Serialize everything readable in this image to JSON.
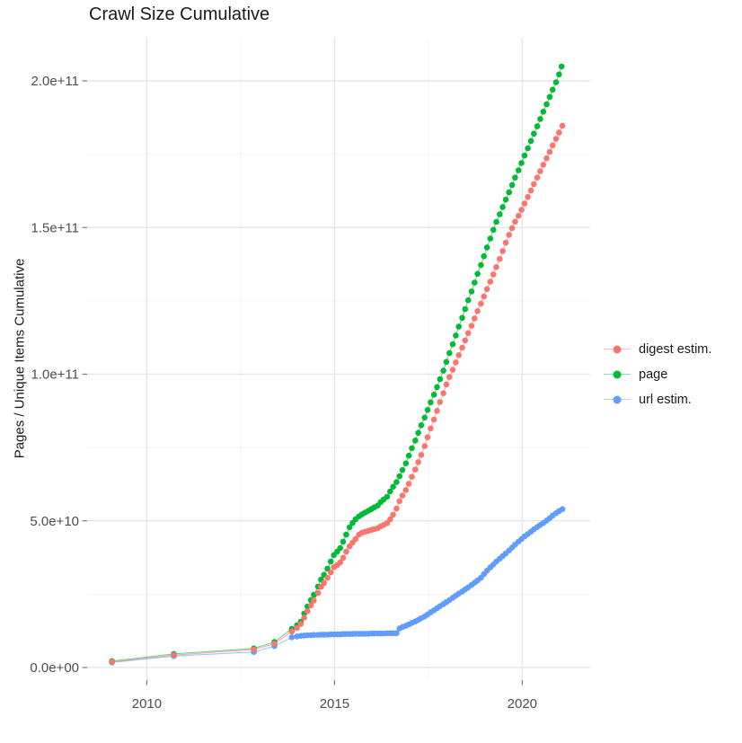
{
  "title": "Crawl Size Cumulative",
  "y_axis_title": "Pages / Unique Items Cumulative",
  "colors": {
    "digest": "#F8766D",
    "page": "#00BA38",
    "url": "#619CFF",
    "grid_major": "#e6e6e6",
    "grid_minor": "#f2f2f2",
    "tick_mark": "#7a7a7a",
    "axis_text": "#4d4d4d",
    "title_text": "#1a1a1a"
  },
  "legend": [
    {
      "id": "digest",
      "label": "digest estim."
    },
    {
      "id": "page",
      "label": "page"
    },
    {
      "id": "url",
      "label": "url estim."
    }
  ],
  "chart_data": {
    "type": "scatter",
    "title": "Crawl Size Cumulative",
    "xlabel": "",
    "ylabel": "Pages / Unique Items Cumulative",
    "grid": true,
    "legend_position": "right",
    "value_unit": "pages, values in billions (1e9)",
    "x_axis": {
      "range": [
        2008.41,
        2021.81
      ],
      "major_ticks": [
        2010,
        2015,
        2020
      ],
      "tick_labels": [
        "2010",
        "2015",
        "2020"
      ],
      "minor_ticks": [
        2012.5,
        2017.5
      ]
    },
    "y_axis": {
      "range_e9": [
        -4.3,
        214.7
      ],
      "major_ticks_e9": [
        0,
        50,
        100,
        150,
        200
      ],
      "tick_labels": [
        "0.0e+00",
        "5.0e+10",
        "1.0e+11",
        "1.5e+11",
        "2.0e+11"
      ],
      "minor_ticks_e9": [
        25,
        75,
        125,
        175
      ]
    },
    "series": [
      {
        "name": "url estim.",
        "color_id": "url",
        "points": [
          [
            2009.07,
            1.7
          ],
          [
            2010.72,
            3.9
          ],
          [
            2012.85,
            5.3
          ],
          [
            2013.4,
            7.3
          ],
          [
            2013.86,
            10.3
          ],
          [
            2014.0,
            10.6
          ],
          [
            2014.1,
            10.8
          ],
          [
            2014.19,
            10.9
          ],
          [
            2014.28,
            11.0
          ],
          [
            2014.37,
            11.0
          ],
          [
            2014.45,
            11.1
          ],
          [
            2014.56,
            11.1
          ],
          [
            2014.64,
            11.2
          ],
          [
            2014.72,
            11.2
          ],
          [
            2014.81,
            11.2
          ],
          [
            2014.9,
            11.3
          ],
          [
            2014.98,
            11.3
          ],
          [
            2015.07,
            11.3
          ],
          [
            2015.15,
            11.3
          ],
          [
            2015.23,
            11.4
          ],
          [
            2015.31,
            11.4
          ],
          [
            2015.4,
            11.4
          ],
          [
            2015.48,
            11.4
          ],
          [
            2015.56,
            11.5
          ],
          [
            2015.65,
            11.5
          ],
          [
            2015.73,
            11.5
          ],
          [
            2015.81,
            11.5
          ],
          [
            2015.9,
            11.5
          ],
          [
            2015.98,
            11.6
          ],
          [
            2016.06,
            11.6
          ],
          [
            2016.15,
            11.6
          ],
          [
            2016.23,
            11.6
          ],
          [
            2016.31,
            11.6
          ],
          [
            2016.4,
            11.7
          ],
          [
            2016.48,
            11.7
          ],
          [
            2016.56,
            11.7
          ],
          [
            2016.65,
            11.7
          ],
          [
            2016.73,
            13.3
          ],
          [
            2016.81,
            13.8
          ],
          [
            2016.9,
            14.2
          ],
          [
            2016.98,
            14.7
          ],
          [
            2017.06,
            15.2
          ],
          [
            2017.15,
            15.7
          ],
          [
            2017.23,
            16.2
          ],
          [
            2017.31,
            16.8
          ],
          [
            2017.4,
            17.4
          ],
          [
            2017.48,
            18.1
          ],
          [
            2017.56,
            18.8
          ],
          [
            2017.65,
            19.5
          ],
          [
            2017.73,
            20.2
          ],
          [
            2017.81,
            20.9
          ],
          [
            2017.9,
            21.6
          ],
          [
            2017.98,
            22.3
          ],
          [
            2018.06,
            23.0
          ],
          [
            2018.15,
            23.8
          ],
          [
            2018.23,
            24.5
          ],
          [
            2018.31,
            25.2
          ],
          [
            2018.4,
            25.9
          ],
          [
            2018.48,
            26.6
          ],
          [
            2018.56,
            27.3
          ],
          [
            2018.65,
            28.1
          ],
          [
            2018.73,
            28.9
          ],
          [
            2018.81,
            29.7
          ],
          [
            2018.9,
            30.6
          ],
          [
            2018.98,
            31.8
          ],
          [
            2019.06,
            33.0
          ],
          [
            2019.15,
            34.1
          ],
          [
            2019.23,
            35.1
          ],
          [
            2019.31,
            36.1
          ],
          [
            2019.4,
            37.1
          ],
          [
            2019.48,
            38.0
          ],
          [
            2019.56,
            38.9
          ],
          [
            2019.65,
            39.9
          ],
          [
            2019.73,
            40.9
          ],
          [
            2019.81,
            41.9
          ],
          [
            2019.9,
            42.9
          ],
          [
            2019.98,
            43.8
          ],
          [
            2020.06,
            44.7
          ],
          [
            2020.15,
            45.5
          ],
          [
            2020.23,
            46.3
          ],
          [
            2020.31,
            47.1
          ],
          [
            2020.4,
            47.9
          ],
          [
            2020.48,
            48.6
          ],
          [
            2020.56,
            49.3
          ],
          [
            2020.65,
            50.1
          ],
          [
            2020.73,
            50.9
          ],
          [
            2020.81,
            51.8
          ],
          [
            2020.9,
            52.6
          ],
          [
            2020.98,
            53.3
          ],
          [
            2021.07,
            54.0
          ]
        ]
      },
      {
        "name": "page",
        "color_id": "page",
        "points": [
          [
            2009.07,
            2.2
          ],
          [
            2010.72,
            4.6
          ],
          [
            2012.85,
            6.5
          ],
          [
            2013.4,
            8.7
          ],
          [
            2013.86,
            13.2
          ],
          [
            2014.0,
            14.4
          ],
          [
            2014.1,
            15.6
          ],
          [
            2014.19,
            18.4
          ],
          [
            2014.28,
            20.8
          ],
          [
            2014.37,
            23.0
          ],
          [
            2014.45,
            24.8
          ],
          [
            2014.56,
            27.6
          ],
          [
            2014.64,
            30.0
          ],
          [
            2014.72,
            31.6
          ],
          [
            2014.81,
            33.7
          ],
          [
            2014.9,
            36.1
          ],
          [
            2014.98,
            38.3
          ],
          [
            2015.07,
            39.5
          ],
          [
            2015.15,
            40.7
          ],
          [
            2015.23,
            42.9
          ],
          [
            2015.31,
            45.3
          ],
          [
            2015.4,
            47.8
          ],
          [
            2015.48,
            49.3
          ],
          [
            2015.56,
            50.5
          ],
          [
            2015.65,
            51.5
          ],
          [
            2015.73,
            52.2
          ],
          [
            2015.81,
            52.8
          ],
          [
            2015.9,
            53.4
          ],
          [
            2015.98,
            54.0
          ],
          [
            2016.06,
            54.6
          ],
          [
            2016.15,
            55.2
          ],
          [
            2016.23,
            56.4
          ],
          [
            2016.31,
            57.3
          ],
          [
            2016.4,
            58.2
          ],
          [
            2016.48,
            60.0
          ],
          [
            2016.56,
            61.6
          ],
          [
            2016.65,
            63.2
          ],
          [
            2016.73,
            65.2
          ],
          [
            2016.81,
            67.3
          ],
          [
            2016.9,
            69.6
          ],
          [
            2016.98,
            72.2
          ],
          [
            2017.06,
            74.8
          ],
          [
            2017.15,
            77.4
          ],
          [
            2017.23,
            80.0
          ],
          [
            2017.31,
            82.6
          ],
          [
            2017.4,
            85.2
          ],
          [
            2017.48,
            87.8
          ],
          [
            2017.56,
            90.4
          ],
          [
            2017.65,
            93.0
          ],
          [
            2017.73,
            95.6
          ],
          [
            2017.81,
            98.3
          ],
          [
            2017.9,
            101.2
          ],
          [
            2017.98,
            104.2
          ],
          [
            2018.06,
            107.2
          ],
          [
            2018.15,
            110.2
          ],
          [
            2018.23,
            113.2
          ],
          [
            2018.31,
            116.2
          ],
          [
            2018.4,
            119.2
          ],
          [
            2018.48,
            122.2
          ],
          [
            2018.56,
            125.2
          ],
          [
            2018.65,
            128.2
          ],
          [
            2018.73,
            131.2
          ],
          [
            2018.81,
            134.2
          ],
          [
            2018.9,
            137.2
          ],
          [
            2018.98,
            140.2
          ],
          [
            2019.06,
            143.2
          ],
          [
            2019.15,
            146.2
          ],
          [
            2019.23,
            149.2
          ],
          [
            2019.31,
            151.9
          ],
          [
            2019.4,
            154.5
          ],
          [
            2019.48,
            157.0
          ],
          [
            2019.56,
            159.5
          ],
          [
            2019.65,
            162.0
          ],
          [
            2019.73,
            164.5
          ],
          [
            2019.81,
            167.0
          ],
          [
            2019.9,
            169.5
          ],
          [
            2019.98,
            172.0
          ],
          [
            2020.06,
            174.5
          ],
          [
            2020.15,
            177.0
          ],
          [
            2020.23,
            179.5
          ],
          [
            2020.31,
            182.0
          ],
          [
            2020.4,
            184.5
          ],
          [
            2020.48,
            187.0
          ],
          [
            2020.56,
            189.5
          ],
          [
            2020.65,
            192.0
          ],
          [
            2020.73,
            194.5
          ],
          [
            2020.81,
            197.0
          ],
          [
            2020.9,
            199.5
          ],
          [
            2020.98,
            202.2
          ],
          [
            2021.05,
            204.9
          ]
        ]
      },
      {
        "name": "digest estim.",
        "color_id": "digest",
        "points": [
          [
            2009.07,
            1.9
          ],
          [
            2010.72,
            4.2
          ],
          [
            2012.85,
            6.1
          ],
          [
            2013.4,
            8.1
          ],
          [
            2013.86,
            12.3
          ],
          [
            2014.0,
            13.5
          ],
          [
            2014.1,
            14.8
          ],
          [
            2014.19,
            17.0
          ],
          [
            2014.28,
            19.2
          ],
          [
            2014.37,
            21.2
          ],
          [
            2014.45,
            22.8
          ],
          [
            2014.56,
            25.4
          ],
          [
            2014.64,
            27.5
          ],
          [
            2014.72,
            28.8
          ],
          [
            2014.81,
            30.6
          ],
          [
            2014.9,
            32.4
          ],
          [
            2014.98,
            34.2
          ],
          [
            2015.07,
            34.9
          ],
          [
            2015.15,
            35.8
          ],
          [
            2015.23,
            37.4
          ],
          [
            2015.31,
            39.5
          ],
          [
            2015.4,
            41.3
          ],
          [
            2015.48,
            42.6
          ],
          [
            2015.56,
            43.8
          ],
          [
            2015.65,
            45.3
          ],
          [
            2015.73,
            45.9
          ],
          [
            2015.81,
            46.3
          ],
          [
            2015.9,
            46.6
          ],
          [
            2015.98,
            46.9
          ],
          [
            2016.06,
            47.2
          ],
          [
            2016.15,
            47.5
          ],
          [
            2016.23,
            48.1
          ],
          [
            2016.31,
            48.6
          ],
          [
            2016.4,
            49.2
          ],
          [
            2016.48,
            50.5
          ],
          [
            2016.56,
            52.1
          ],
          [
            2016.65,
            54.2
          ],
          [
            2016.73,
            56.7
          ],
          [
            2016.81,
            58.6
          ],
          [
            2016.9,
            60.5
          ],
          [
            2016.98,
            62.6
          ],
          [
            2017.06,
            65.0
          ],
          [
            2017.15,
            67.5
          ],
          [
            2017.23,
            70.0
          ],
          [
            2017.31,
            72.5
          ],
          [
            2017.4,
            75.5
          ],
          [
            2017.48,
            78.5
          ],
          [
            2017.56,
            81.5
          ],
          [
            2017.65,
            84.5
          ],
          [
            2017.73,
            87.5
          ],
          [
            2017.81,
            90.5
          ],
          [
            2017.9,
            93.5
          ],
          [
            2017.98,
            96.5
          ],
          [
            2018.06,
            99.0
          ],
          [
            2018.15,
            101.5
          ],
          [
            2018.23,
            104.0
          ],
          [
            2018.31,
            106.5
          ],
          [
            2018.4,
            109.0
          ],
          [
            2018.48,
            111.5
          ],
          [
            2018.56,
            114.0
          ],
          [
            2018.65,
            116.5
          ],
          [
            2018.73,
            119.0
          ],
          [
            2018.81,
            121.5
          ],
          [
            2018.9,
            124.0
          ],
          [
            2018.98,
            126.5
          ],
          [
            2019.06,
            129.0
          ],
          [
            2019.15,
            131.5
          ],
          [
            2019.23,
            134.0
          ],
          [
            2019.31,
            136.5
          ],
          [
            2019.4,
            139.3
          ],
          [
            2019.48,
            142.0
          ],
          [
            2019.56,
            144.8
          ],
          [
            2019.65,
            147.5
          ],
          [
            2019.73,
            149.8
          ],
          [
            2019.81,
            152.0
          ],
          [
            2019.9,
            154.0
          ],
          [
            2019.98,
            156.0
          ],
          [
            2020.06,
            158.2
          ],
          [
            2020.15,
            160.4
          ],
          [
            2020.23,
            162.6
          ],
          [
            2020.31,
            164.8
          ],
          [
            2020.4,
            167.0
          ],
          [
            2020.48,
            169.2
          ],
          [
            2020.56,
            171.4
          ],
          [
            2020.65,
            173.6
          ],
          [
            2020.73,
            175.8
          ],
          [
            2020.81,
            178.0
          ],
          [
            2020.9,
            180.2
          ],
          [
            2020.98,
            182.4
          ],
          [
            2021.07,
            184.7
          ]
        ]
      }
    ]
  }
}
